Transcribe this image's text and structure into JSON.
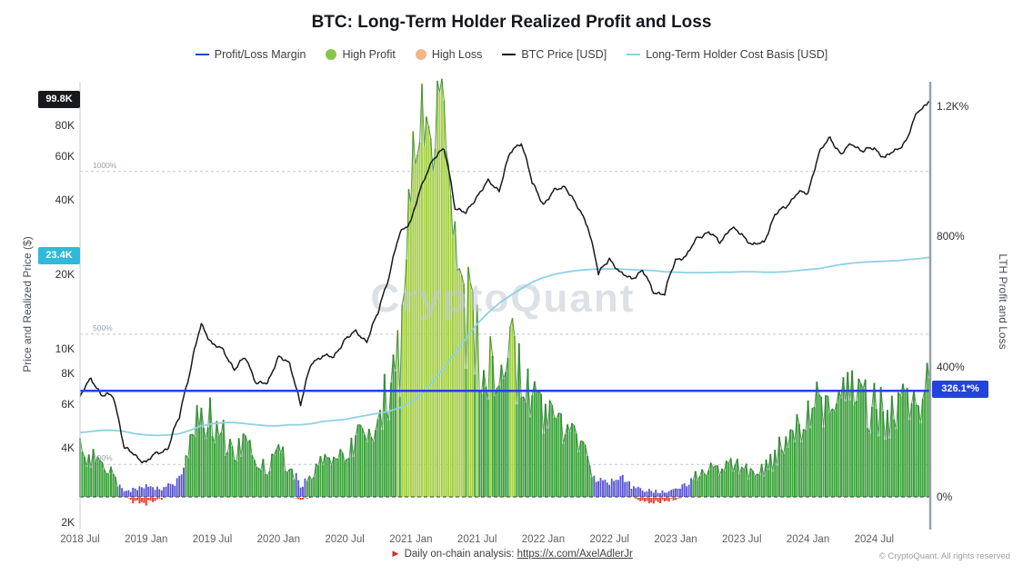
{
  "title": "BTC: Long-Term Holder Realized Profit and Loss",
  "watermark": "CryptoQuant",
  "legend": {
    "items": [
      {
        "label": "Profit/Loss Margin",
        "swatch": "line",
        "color": "#2443dd"
      },
      {
        "label": "High Profit",
        "swatch": "dot",
        "color": "#8bc34a"
      },
      {
        "label": "High Loss",
        "swatch": "dot",
        "color": "#f6b488"
      },
      {
        "label": "BTC Price [USD]",
        "swatch": "line",
        "color": "#17191c"
      },
      {
        "label": "Long-Term Holder Cost Basis [USD]",
        "swatch": "line",
        "color": "#8ed1e3"
      }
    ]
  },
  "axes": {
    "left_title": "Price and Realized Price ($)",
    "right_title": "LTH Profit and Loss",
    "left_ticks": [
      {
        "label": "2K",
        "value": 2000
      },
      {
        "label": "4K",
        "value": 4000
      },
      {
        "label": "6K",
        "value": 6000
      },
      {
        "label": "8K",
        "value": 8000
      },
      {
        "label": "10K",
        "value": 10000
      },
      {
        "label": "20K",
        "value": 20000
      },
      {
        "label": "40K",
        "value": 40000
      },
      {
        "label": "60K",
        "value": 60000
      },
      {
        "label": "80K",
        "value": 80000
      }
    ],
    "right_ticks": [
      {
        "label": "0%",
        "value": 0
      },
      {
        "label": "400%",
        "value": 400
      },
      {
        "label": "800%",
        "value": 800
      },
      {
        "label": "1.2K%",
        "value": 1200
      }
    ],
    "ref_lines": [
      {
        "label": "1000%",
        "value": 1000
      },
      {
        "label": "500%",
        "value": 500
      },
      {
        "label": "100%",
        "value": 100
      }
    ],
    "x_ticks": [
      {
        "label": "2018 Jul",
        "m": 0
      },
      {
        "label": "2019 Jan",
        "m": 6
      },
      {
        "label": "2019 Jul",
        "m": 12
      },
      {
        "label": "2020 Jan",
        "m": 18
      },
      {
        "label": "2020 Jul",
        "m": 24
      },
      {
        "label": "2021 Jan",
        "m": 30
      },
      {
        "label": "2021 Jul",
        "m": 36
      },
      {
        "label": "2022 Jan",
        "m": 42
      },
      {
        "label": "2022 Jul",
        "m": 48
      },
      {
        "label": "2023 Jan",
        "m": 54
      },
      {
        "label": "2023 Jul",
        "m": 60
      },
      {
        "label": "2024 Jan",
        "m": 66
      },
      {
        "label": "2024 Jul",
        "m": 72
      }
    ]
  },
  "badges": {
    "price": "99.8K",
    "cost_basis": "23.4K",
    "margin": "326.1*%"
  },
  "footer": {
    "arrow": "►",
    "text": "Daily on-chain analysis:",
    "link": "https://x.com/AxelAdlerJr",
    "copyright": "© CryptoQuant. All rights reserved"
  },
  "chart_data": {
    "type": "line",
    "x_start": "2018-07",
    "x_end": "2024-12",
    "x_unit": "month",
    "month_count": 78,
    "left_axis": {
      "scale": "log",
      "unit": "USD",
      "range": [
        2000,
        110000
      ],
      "title": "Price and Realized Price ($)"
    },
    "right_axis": {
      "scale": "linear",
      "unit": "%",
      "range": [
        -60,
        1300
      ],
      "title": "LTH Profit and Loss"
    },
    "grid": "dashed-reference-lines at 100%, 500%, 1000% and 0% baseline",
    "legend_position": "top-center",
    "series": [
      {
        "name": "BTC Price [USD]",
        "axis": "left",
        "type": "line",
        "color": "#17191c",
        "values": [
          6400,
          7600,
          6500,
          6450,
          4000,
          3700,
          3500,
          3800,
          4000,
          5300,
          8200,
          12500,
          10500,
          9800,
          8300,
          9200,
          7300,
          7200,
          9400,
          8600,
          6000,
          8700,
          9500,
          9150,
          11000,
          11650,
          10800,
          13800,
          19600,
          29000,
          33100,
          45100,
          58900,
          63500,
          37300,
          35000,
          41600,
          47100,
          43800,
          61300,
          68500,
          46200,
          38500,
          43200,
          45500,
          37700,
          31800,
          19900,
          23300,
          20000,
          19400,
          20500,
          17100,
          16500,
          23100,
          23500,
          28500,
          29300,
          27200,
          30500,
          29200,
          26000,
          27000,
          34500,
          37700,
          42300,
          42600,
          61200,
          71300,
          60600,
          67500,
          62700,
          64600,
          59000,
          63300,
          70200,
          91500,
          99800
        ]
      },
      {
        "name": "Long-Term Holder Cost Basis [USD]",
        "axis": "left",
        "type": "line",
        "color": "#8ed1e3",
        "values": [
          4600,
          4650,
          4700,
          4700,
          4650,
          4550,
          4500,
          4480,
          4500,
          4550,
          4700,
          4900,
          5000,
          5050,
          5050,
          5000,
          4950,
          4900,
          4900,
          4950,
          4950,
          5000,
          5100,
          5150,
          5200,
          5300,
          5400,
          5500,
          5600,
          5800,
          6100,
          6600,
          7400,
          8400,
          9600,
          11000,
          12600,
          14000,
          15300,
          16400,
          17500,
          18600,
          19400,
          20000,
          20400,
          20700,
          20900,
          21000,
          21000,
          21000,
          20900,
          20800,
          20700,
          20500,
          20400,
          20300,
          20300,
          20300,
          20400,
          20400,
          20500,
          20500,
          20400,
          20400,
          20500,
          20700,
          20900,
          21100,
          21500,
          21900,
          22200,
          22400,
          22500,
          22600,
          22700,
          22900,
          23100,
          23400
        ]
      },
      {
        "name": "Profit/Loss Margin",
        "axis": "right",
        "type": "bars",
        "color_profit": "#3fa33f",
        "color_high_peak": "#a7d04b",
        "color_neutral": "#5552cf",
        "color_loss": "#e0442e",
        "band_key": "p=high profit, n=neutral, l=high loss",
        "band": [
          "p",
          "p",
          "p",
          "p",
          "n",
          "l",
          "l",
          "l",
          "n",
          "n",
          "p",
          "p",
          "p",
          "p",
          "p",
          "p",
          "p",
          "p",
          "p",
          "p",
          "l",
          "p",
          "p",
          "p",
          "p",
          "p",
          "p",
          "p",
          "p",
          "p",
          "p",
          "p",
          "p",
          "p",
          "p",
          "p",
          "p",
          "p",
          "p",
          "p",
          "p",
          "p",
          "p",
          "p",
          "p",
          "p",
          "p",
          "n",
          "n",
          "n",
          "n",
          "l",
          "l",
          "l",
          "l",
          "n",
          "p",
          "p",
          "p",
          "p",
          "p",
          "p",
          "p",
          "p",
          "p",
          "p",
          "p",
          "p",
          "p",
          "p",
          "p",
          "p",
          "p",
          "p",
          "p",
          "p",
          "p",
          "p"
        ],
        "values": [
          150,
          120,
          90,
          65,
          15,
          25,
          30,
          25,
          35,
          50,
          165,
          250,
          230,
          185,
          150,
          155,
          115,
          90,
          125,
          105,
          25,
          70,
          105,
          100,
          130,
          185,
          160,
          240,
          330,
          430,
          950,
          1230,
          1120,
          1260,
          800,
          560,
          450,
          420,
          390,
          420,
          400,
          300,
          225,
          235,
          195,
          170,
          115,
          50,
          45,
          60,
          35,
          20,
          18,
          15,
          20,
          40,
          70,
          85,
          70,
          95,
          90,
          70,
          80,
          120,
          170,
          225,
          235,
          285,
          335,
          300,
          310,
          290,
          280,
          255,
          270,
          295,
          330,
          326
        ],
        "loss": [
          0,
          0,
          0,
          0,
          0,
          -18,
          -20,
          -12,
          0,
          0,
          0,
          0,
          0,
          0,
          0,
          0,
          0,
          0,
          0,
          0,
          -10,
          0,
          0,
          0,
          0,
          0,
          0,
          0,
          0,
          0,
          0,
          0,
          0,
          0,
          0,
          0,
          0,
          0,
          0,
          0,
          0,
          0,
          0,
          0,
          0,
          0,
          0,
          0,
          0,
          0,
          0,
          -12,
          -16,
          -14,
          -8,
          0,
          0,
          0,
          0,
          0,
          0,
          0,
          0,
          0,
          0,
          0,
          0,
          0,
          0,
          0,
          0,
          0,
          0,
          0,
          0,
          0,
          0,
          0
        ]
      }
    ],
    "current": {
      "price": 99800,
      "cost_basis": 23400,
      "margin_pct": 326.1
    }
  }
}
